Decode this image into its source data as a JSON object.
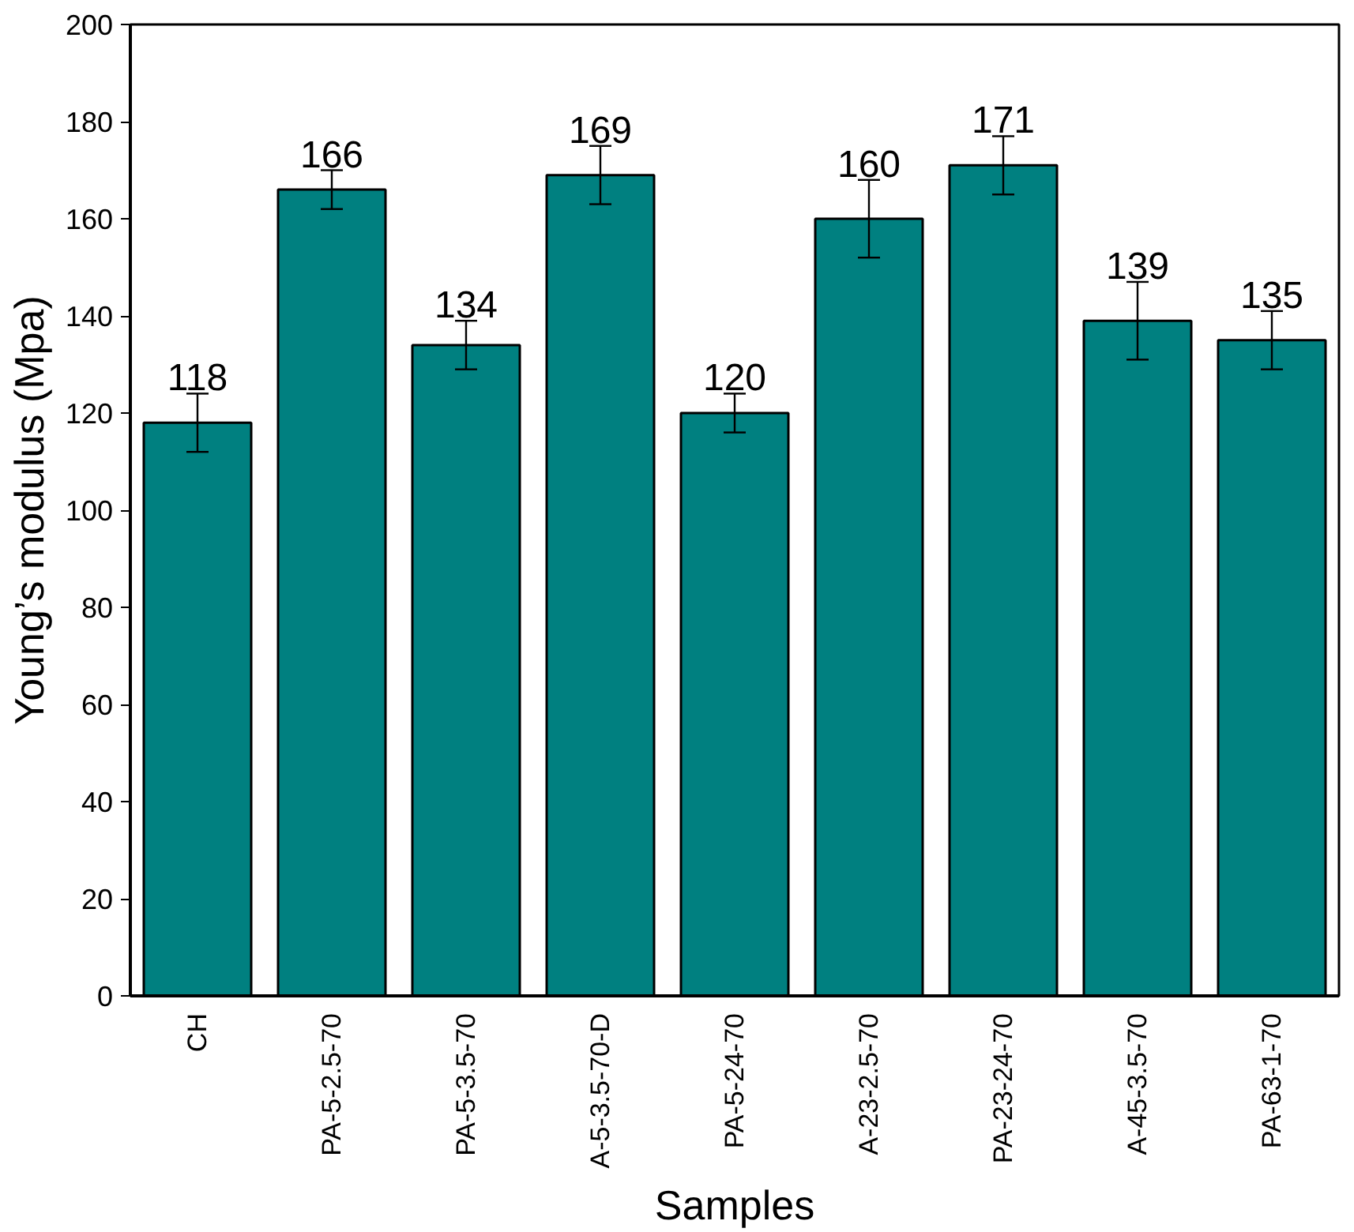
{
  "chart_data": {
    "type": "bar",
    "xlabel": "Samples",
    "ylabel": "Young’s modulus (Mpa)",
    "categories": [
      "CH",
      "PA-5-2.5-70",
      "PA-5-3.5-70",
      "A-5-3.5-70-D",
      "PA-5-24-70",
      "A-23-2.5-70",
      "PA-23-24-70",
      "A-45-3.5-70",
      "PA-63-1-70"
    ],
    "values": [
      118,
      166,
      134,
      169,
      120,
      160,
      171,
      139,
      135
    ],
    "errors": [
      6,
      4,
      5,
      6,
      4,
      8,
      6,
      8,
      6
    ],
    "color": "#008080",
    "data_labels": true,
    "grid": false,
    "ylim": [
      0,
      200
    ],
    "yticks": [
      0,
      20,
      40,
      60,
      80,
      100,
      120,
      140,
      160,
      180,
      200
    ]
  }
}
